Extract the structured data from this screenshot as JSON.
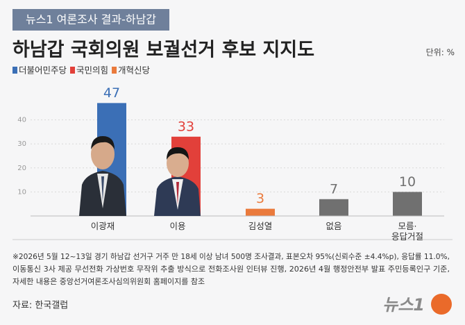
{
  "tag": "뉴스1 여론조사 결과-하남갑",
  "unit": "단위: %",
  "chart_data": {
    "type": "bar",
    "title": "하남갑 국회의원 보궐선거 후보 지지도",
    "legend": [
      {
        "name": "더불어민주당",
        "color": "#3b6fb6"
      },
      {
        "name": "국민의힘",
        "color": "#e2403a"
      },
      {
        "name": "개혁신당",
        "color": "#ea7a3c"
      }
    ],
    "categories": [
      "이광재",
      "이용",
      "김성열",
      "없음",
      "모름·\n응답거절"
    ],
    "values": [
      47,
      33,
      3,
      7,
      10
    ],
    "colors": [
      "#3b6fb6",
      "#e2403a",
      "#ea7a3c",
      "#707070",
      "#707070"
    ],
    "ylim": [
      0,
      50
    ],
    "yticks": [
      10,
      20,
      30,
      40
    ],
    "grid": true
  },
  "footnote": [
    "※2026년 5월 12~13일 경기 하남갑 선거구 거주 만 18세 이상 남녀 500명 조사결과, 표본오차 95%(신뢰수준 ±4.4%p), 응답률 11.0%,",
    "이동통신 3사 제공 무선전화 가상번호 무작위 추출 방식으로 전화조사원 인터뷰 진행, 2026년 4월 행정안전부 발표 주민등록인구 기준,",
    "자세한 내용은 중앙선거여론조사심의위원회 홈페이지를 참조"
  ],
  "source": "자료: 한국갤럽",
  "logo": "뉴스1"
}
